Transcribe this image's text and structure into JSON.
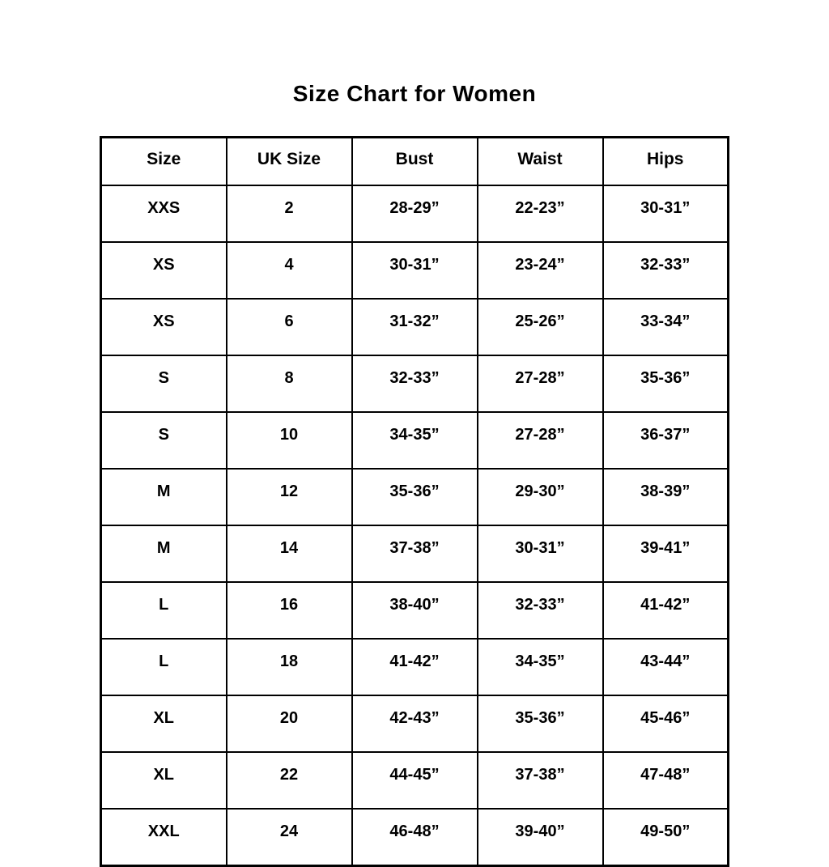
{
  "page": {
    "title": "Size Chart for Women"
  },
  "chart_data": {
    "type": "table",
    "title": "Size Chart for Women",
    "headers": [
      "Size",
      "UK Size",
      "Bust",
      "Waist",
      "Hips"
    ],
    "rows": [
      [
        "XXS",
        "2",
        "28-29”",
        "22-23”",
        "30-31”"
      ],
      [
        "XS",
        "4",
        "30-31”",
        "23-24”",
        "32-33”"
      ],
      [
        "XS",
        "6",
        "31-32”",
        "25-26”",
        "33-34”"
      ],
      [
        "S",
        "8",
        "32-33”",
        "27-28”",
        "35-36”"
      ],
      [
        "S",
        "10",
        "34-35”",
        "27-28”",
        "36-37”"
      ],
      [
        "M",
        "12",
        "35-36”",
        "29-30”",
        "38-39”"
      ],
      [
        "M",
        "14",
        "37-38”",
        "30-31”",
        "39-41”"
      ],
      [
        "L",
        "16",
        "38-40”",
        "32-33”",
        "41-42”"
      ],
      [
        "L",
        "18",
        "41-42”",
        "34-35”",
        "43-44”"
      ],
      [
        "XL",
        "20",
        "42-43”",
        "35-36”",
        "45-46”"
      ],
      [
        "XL",
        "22",
        "44-45”",
        "37-38”",
        "47-48”"
      ],
      [
        "XXL",
        "24",
        "46-48”",
        "39-40”",
        "49-50”"
      ]
    ],
    "layout": {
      "grid": true,
      "column_count": 5,
      "row_count": 12
    },
    "colors": {
      "border": "#000000",
      "text": "#000000",
      "background": "#ffffff"
    }
  }
}
